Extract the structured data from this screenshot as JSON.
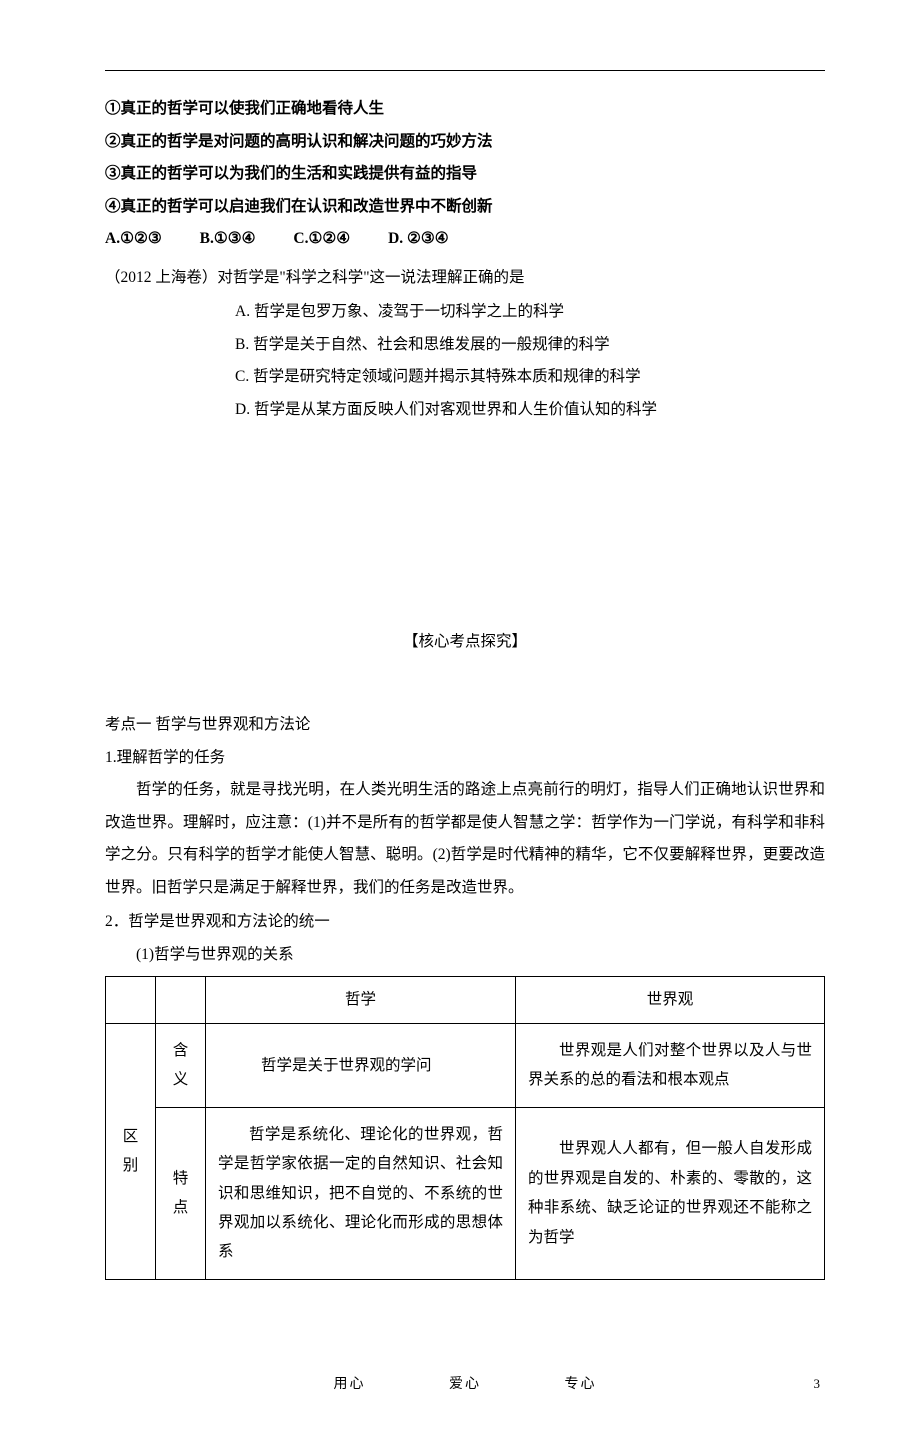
{
  "statements": {
    "s1": "①真正的哲学可以使我们正确地看待人生",
    "s2": "②真正的哲学是对问题的高明认识和解决问题的巧妙方法",
    "s3": "③真正的哲学可以为我们的生活和实践提供有益的指导",
    "s4": "④真正的哲学可以启迪我们在认识和改造世界中不断创新"
  },
  "options1": {
    "a": "A.①②③",
    "b": "B.①③④",
    "c": "C.①②④",
    "d": "D. ②③④"
  },
  "q2": {
    "stem": "（2012 上海卷）对哲学是\"科学之科学\"这一说法理解正确的是",
    "a": "A. 哲学是包罗万象、凌驾于一切科学之上的科学",
    "b": "B. 哲学是关于自然、社会和思维发展的一般规律的科学",
    "c": "C. 哲学是研究特定领域问题并揭示其特殊本质和规律的科学",
    "d": "D. 哲学是从某方面反映人们对客观世界和人生价值认知的科学"
  },
  "section": "【核心考点探究】",
  "kaodian": "考点一  哲学与世界观和方法论",
  "p1_title": "1.理解哲学的任务",
  "p1_body": "哲学的任务，就是寻找光明，在人类光明生活的路途上点亮前行的明灯，指导人们正确地认识世界和改造世界。理解时，应注意：(1)并不是所有的哲学都是使人智慧之学：哲学作为一门学说，有科学和非科学之分。只有科学的哲学才能使人智慧、聪明。(2)哲学是时代精神的精华，它不仅要解释世界，更要改造世界。旧哲学只是满足于解释世界，我们的任务是改造世界。",
  "p2_title": "2．哲学是世界观和方法论的统一",
  "p2_sub": "(1)哲学与世界观的关系",
  "table": {
    "header_phil": "哲学",
    "header_world": "世界观",
    "row_label": "区别",
    "attr1": "含义",
    "attr2": "特点",
    "r1c1": "哲学是关于世界观的学问",
    "r1c2": "世界观是人们对整个世界以及人与世界关系的总的看法和根本观点",
    "r2c1": "哲学是系统化、理论化的世界观，哲学是哲学家依据一定的自然知识、社会知识和思维知识，把不自觉的、不系统的世界观加以系统化、理论化而形成的思想体系",
    "r2c2": "世界观人人都有，但一般人自发形成的世界观是自发的、朴素的、零散的，这种非系统、缺乏论证的世界观还不能称之为哲学"
  },
  "footer": {
    "w1": "用心",
    "w2": "爱心",
    "w3": "专心",
    "page": "3"
  }
}
